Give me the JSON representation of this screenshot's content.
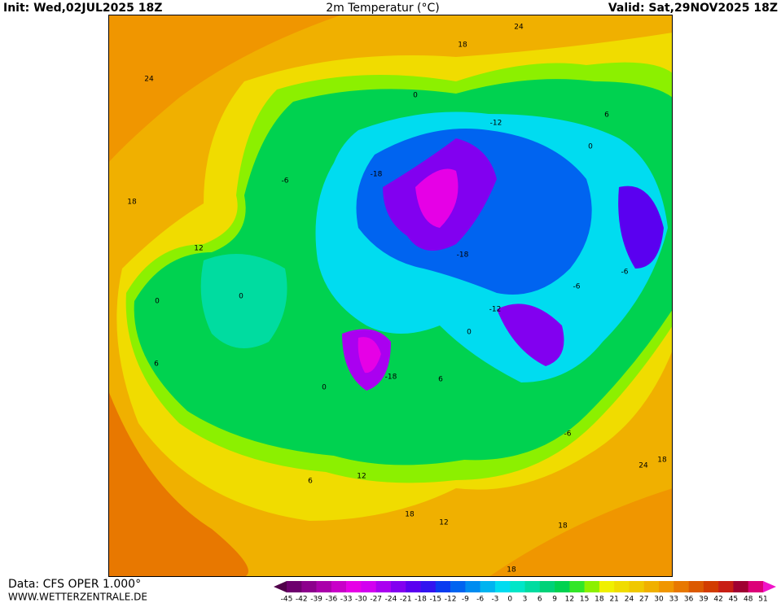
{
  "header": {
    "init": "Init: Wed,02JUL2025 18Z",
    "title": "2m Temperatur (°C)",
    "valid": "Valid: Sat,29NOV2025 18Z"
  },
  "footer": {
    "data": "Data: CFS OPER 1.000°",
    "site": "WWW.WETTERZENTRALE.DE"
  },
  "colorbar": {
    "labels": [
      -45,
      -42,
      -39,
      -36,
      -33,
      -30,
      -27,
      -24,
      -21,
      -18,
      -15,
      -12,
      -9,
      -6,
      -3,
      0,
      3,
      6,
      9,
      12,
      15,
      18,
      21,
      24,
      27,
      30,
      33,
      36,
      39,
      42,
      45,
      48,
      51
    ],
    "arrow_low_color": "#50004a",
    "colors": [
      "#6e006e",
      "#8c008c",
      "#aa00aa",
      "#c800c8",
      "#e600e6",
      "#d200f0",
      "#aa00f0",
      "#8200f0",
      "#5a00f0",
      "#3214f0",
      "#0a3cf0",
      "#0064f0",
      "#008cf0",
      "#00b4f0",
      "#00dcf0",
      "#00e6c8",
      "#00dca0",
      "#00d278",
      "#00d250",
      "#32e628",
      "#8cf000",
      "#f0f000",
      "#f0dc00",
      "#f0c800",
      "#f0b000",
      "#f09600",
      "#e87800",
      "#dc5a00",
      "#d23c00",
      "#c81e14",
      "#a00032",
      "#dc0078"
    ],
    "arrow_high_color": "#f014c8"
  },
  "map": {
    "contour_labels": [
      24,
      18,
      24,
      0,
      -12,
      6,
      0,
      18,
      -6,
      -18,
      12,
      -18,
      -6,
      0,
      0,
      -6,
      -12,
      0,
      6,
      -18,
      6,
      0,
      -6,
      6,
      12,
      18,
      12,
      24,
      18,
      18,
      18
    ]
  }
}
